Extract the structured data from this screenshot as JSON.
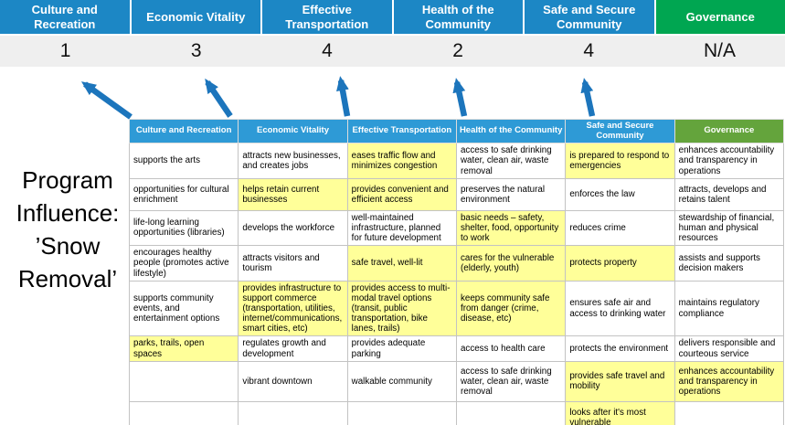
{
  "title": "Program Influence: ’Snow Removal’",
  "colors": {
    "blue": "#1c87c5",
    "green": "#00a651",
    "table-header-blue": "#2e9ad6",
    "table-header-green": "#64a43c",
    "highlight": "#ffff99",
    "score-band": "#efefef",
    "arrow": "#1c75bc"
  },
  "top_band": {
    "columns": [
      {
        "label": "Culture and Recreation",
        "score": "1",
        "bg": "#1c87c5"
      },
      {
        "label": "Economic Vitality",
        "score": "3",
        "bg": "#1c87c5"
      },
      {
        "label": "Effective Transportation",
        "score": "4",
        "bg": "#1c87c5"
      },
      {
        "label": "Health of the Community",
        "score": "2",
        "bg": "#1c87c5"
      },
      {
        "label": "Safe and Secure Community",
        "score": "4",
        "bg": "#1c87c5"
      },
      {
        "label": "Governance",
        "score": "N/A",
        "bg": "#00a651"
      }
    ]
  },
  "table": {
    "headers": [
      {
        "label": "Culture and Recreation",
        "bg": "#2e9ad6"
      },
      {
        "label": "Economic Vitality",
        "bg": "#2e9ad6"
      },
      {
        "label": "Effective Transportation",
        "bg": "#2e9ad6"
      },
      {
        "label": "Health of the Community",
        "bg": "#2e9ad6"
      },
      {
        "label": "Safe and Secure Community",
        "bg": "#2e9ad6"
      },
      {
        "label": "Governance",
        "bg": "#64a43c"
      }
    ],
    "rows": [
      [
        {
          "text": "supports the arts",
          "highlight": false
        },
        {
          "text": "attracts new businesses, and creates jobs",
          "highlight": false
        },
        {
          "text": "eases traffic flow and minimizes congestion",
          "highlight": true
        },
        {
          "text": "access to safe drinking water, clean air, waste removal",
          "highlight": false
        },
        {
          "text": "is prepared to respond to emergencies",
          "highlight": true
        },
        {
          "text": "enhances accountability and transparency in operations",
          "highlight": false
        }
      ],
      [
        {
          "text": "opportunities for cultural enrichment",
          "highlight": false
        },
        {
          "text": "helps retain current businesses",
          "highlight": true
        },
        {
          "text": "provides convenient and efficient access",
          "highlight": true
        },
        {
          "text": "preserves the natural environment",
          "highlight": false
        },
        {
          "text": "enforces the law",
          "highlight": false
        },
        {
          "text": "attracts, develops and retains talent",
          "highlight": false
        }
      ],
      [
        {
          "text": "life-long learning opportunities (libraries)",
          "highlight": false
        },
        {
          "text": "develops the workforce",
          "highlight": false
        },
        {
          "text": "well-maintained infrastructure, planned for future development",
          "highlight": false
        },
        {
          "text": "basic needs – safety, shelter, food, opportunity to work",
          "highlight": true
        },
        {
          "text": "reduces crime",
          "highlight": false
        },
        {
          "text": "stewardship of financial, human and physical resources",
          "highlight": false
        }
      ],
      [
        {
          "text": "encourages healthy people (promotes active lifestyle)",
          "highlight": false
        },
        {
          "text": "attracts visitors and tourism",
          "highlight": false
        },
        {
          "text": "safe travel, well-lit",
          "highlight": true
        },
        {
          "text": "cares for the vulnerable (elderly, youth)",
          "highlight": true
        },
        {
          "text": "protects property",
          "highlight": true
        },
        {
          "text": "assists and supports decision makers",
          "highlight": false
        }
      ],
      [
        {
          "text": "supports community events, and entertainment options",
          "highlight": false
        },
        {
          "text": "provides infrastructure to support commerce (transportation, utilities, internet/communications, smart cities, etc)",
          "highlight": true
        },
        {
          "text": "provides access to multi-modal travel options (transit, public transportation, bike lanes, trails)",
          "highlight": true
        },
        {
          "text": "keeps community safe from danger (crime, disease, etc)",
          "highlight": true
        },
        {
          "text": "ensures safe air and access to drinking water",
          "highlight": false
        },
        {
          "text": "maintains regulatory compliance",
          "highlight": false
        }
      ],
      [
        {
          "text": "parks, trails, open spaces",
          "highlight": true
        },
        {
          "text": "regulates growth and development",
          "highlight": false
        },
        {
          "text": "provides adequate parking",
          "highlight": false
        },
        {
          "text": "access to health care",
          "highlight": false
        },
        {
          "text": "protects the environment",
          "highlight": false
        },
        {
          "text": "delivers responsible and courteous service",
          "highlight": false
        }
      ],
      [
        {
          "text": "",
          "highlight": false
        },
        {
          "text": "vibrant downtown",
          "highlight": false
        },
        {
          "text": "walkable community",
          "highlight": false
        },
        {
          "text": "access to safe drinking water, clean air, waste removal",
          "highlight": false
        },
        {
          "text": "provides safe travel and mobility",
          "highlight": true
        },
        {
          "text": "enhances accountability and transparency in operations",
          "highlight": true
        }
      ],
      [
        {
          "text": "",
          "highlight": false
        },
        {
          "text": "",
          "highlight": false
        },
        {
          "text": "",
          "highlight": false
        },
        {
          "text": "",
          "highlight": false
        },
        {
          "text": "looks after it's most vulnerable",
          "highlight": true
        },
        {
          "text": "",
          "highlight": false
        }
      ]
    ]
  }
}
